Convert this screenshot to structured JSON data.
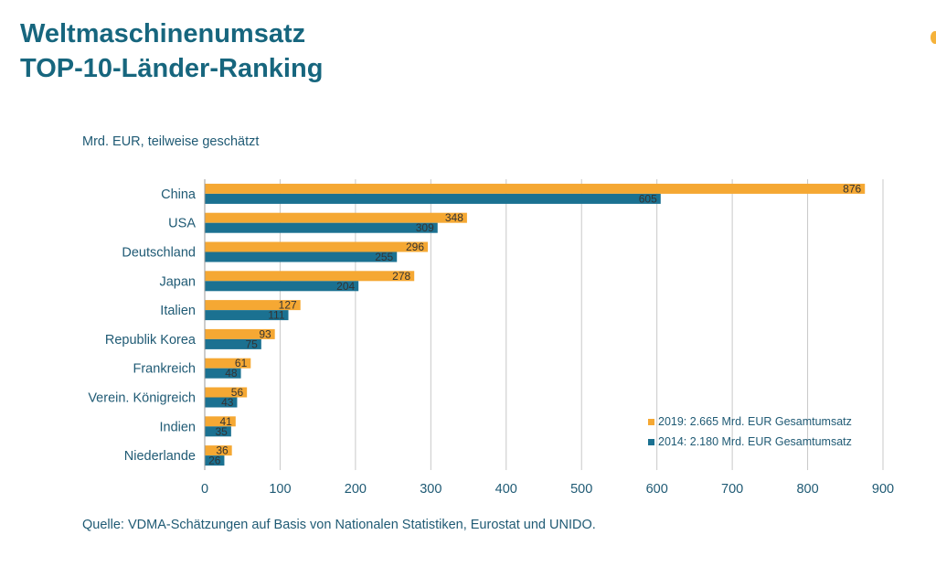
{
  "header": {
    "title_line1": "Weltmaschinenumsatz",
    "title_line2": "TOP-10-Länder-Ranking"
  },
  "subtitle": "Mrd. EUR, teilweise geschätzt",
  "source": "Quelle: VDMA-Schätzungen auf Basis von Nationalen Statistiken, Eurostat und UNIDO.",
  "chart_data": {
    "type": "bar",
    "orientation": "horizontal",
    "categories": [
      "China",
      "USA",
      "Deutschland",
      "Japan",
      "Italien",
      "Republik Korea",
      "Frankreich",
      "Verein. Königreich",
      "Indien",
      "Niederlande"
    ],
    "series": [
      {
        "name": "2019: 2.665 Mrd. EUR Gesamtumsatz",
        "color": "#f5a833",
        "values": [
          876,
          348,
          296,
          278,
          127,
          93,
          61,
          56,
          41,
          36
        ]
      },
      {
        "name": "2014: 2.180 Mrd. EUR Gesamtumsatz",
        "color": "#1b7191",
        "values": [
          605,
          309,
          255,
          204,
          111,
          75,
          48,
          43,
          35,
          26
        ]
      }
    ],
    "xlim": [
      0,
      900
    ],
    "xticks": [
      0,
      100,
      200,
      300,
      400,
      500,
      600,
      700,
      800,
      900
    ],
    "grid": "vertical",
    "legend_position": "bottom-right"
  }
}
